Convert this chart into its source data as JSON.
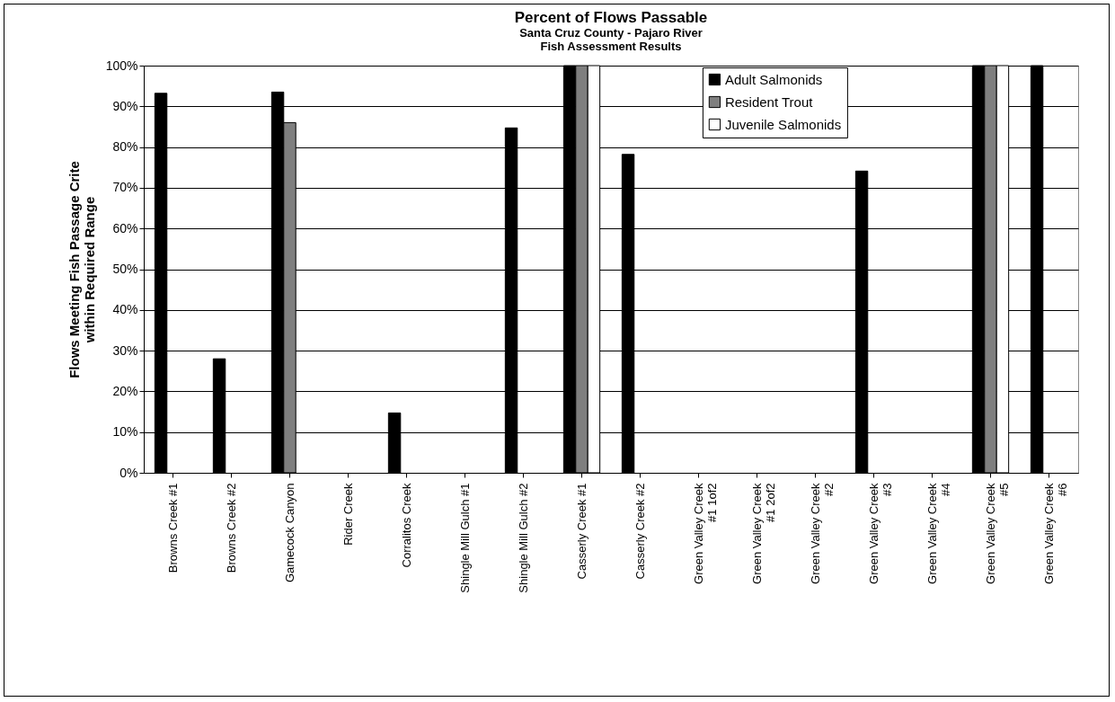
{
  "chart_data": {
    "type": "bar",
    "title": "Percent of Flows Passable",
    "subtitle": "Santa Cruz County - Pajaro River\nFish Assessment Results",
    "ylabel": "Flows Meeting Fish Passage Crite\nwithin Required Range",
    "categories": [
      "Browns Creek #1",
      "Browns Creek #2",
      "Gamecock Canyon",
      "Rider Creek",
      "Corralitos Creek",
      "Shingle Mill Gulch #1",
      "Shingle Mill Gulch #2",
      "Casserly Creek #1",
      "Casserly Creek #2",
      "Green Valley Creek\n#1 1of2",
      "Green Valley Creek\n#1 2of2",
      "Green Valley Creek\n#2",
      "Green Valley Creek\n#3",
      "Green Valley Creek\n#4",
      "Green Valley Creek\n#5",
      "Green Valley Creek\n#6"
    ],
    "series": [
      {
        "name": "Adult Salmonids",
        "color": "#000000",
        "values": [
          93.2,
          28,
          93.5,
          null,
          14.7,
          null,
          84.7,
          100,
          78.2,
          null,
          null,
          null,
          74.1,
          null,
          100,
          100
        ]
      },
      {
        "name": "Resident Trout",
        "color": "#7f7f7f",
        "values": [
          null,
          null,
          86,
          null,
          null,
          null,
          null,
          100,
          null,
          null,
          null,
          null,
          null,
          null,
          100,
          null
        ]
      },
      {
        "name": "Juvenile Salmonids",
        "color": "#ffffff",
        "values": [
          null,
          null,
          null,
          null,
          null,
          null,
          null,
          100,
          null,
          null,
          null,
          null,
          null,
          null,
          100,
          null
        ]
      }
    ],
    "ylim": [
      0,
      100
    ],
    "yticks": [
      {
        "value": 0,
        "label": "0%"
      },
      {
        "value": 10,
        "label": "10%"
      },
      {
        "value": 20,
        "label": "20%"
      },
      {
        "value": 30,
        "label": "30%"
      },
      {
        "value": 40,
        "label": "40%"
      },
      {
        "value": 50,
        "label": "50%"
      },
      {
        "value": 60,
        "label": "60%"
      },
      {
        "value": 70,
        "label": "70%"
      },
      {
        "value": 80,
        "label": "80%"
      },
      {
        "value": 90,
        "label": "90%"
      },
      {
        "value": 100,
        "label": "100%"
      }
    ],
    "grid": "y",
    "legend": "top right"
  }
}
